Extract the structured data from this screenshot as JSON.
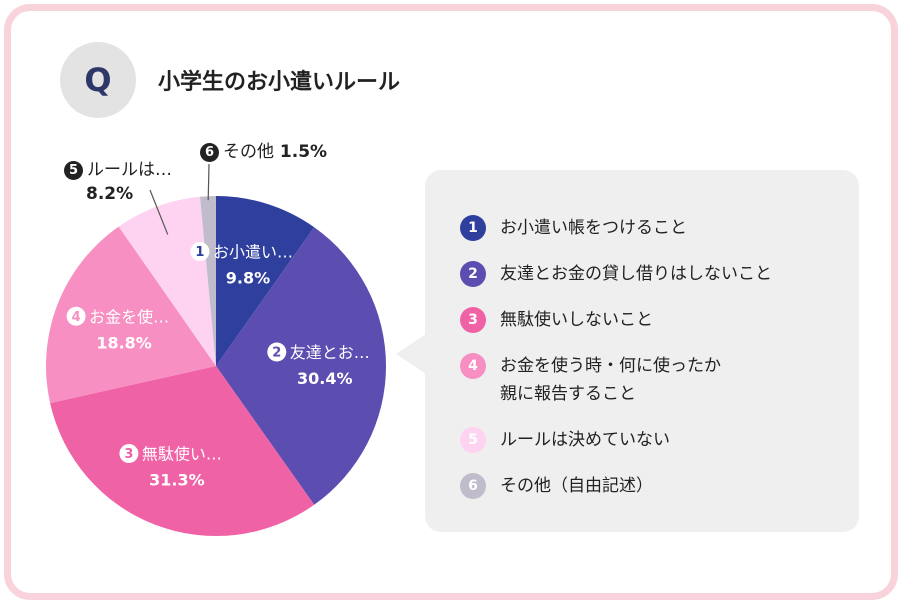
{
  "header": {
    "badge": "Q",
    "title": "小学生のお小遣いルール"
  },
  "colors": {
    "frame": "#f9d3db",
    "bubble": "#efefef",
    "slices": [
      "#2e3f9e",
      "#5c4db1",
      "#f062a6",
      "#f78fc2",
      "#fdd3f1",
      "#c0bccc"
    ]
  },
  "chart_data": {
    "type": "pie",
    "title": "小学生のお小遣いルール",
    "start_angle": "12 o'clock, clockwise",
    "slices": [
      {
        "num": "1",
        "label": "お小遣い…",
        "value": 9.8,
        "display": "9.8%"
      },
      {
        "num": "2",
        "label": "友達とお…",
        "value": 30.4,
        "display": "30.4%"
      },
      {
        "num": "3",
        "label": "無駄使い…",
        "value": 31.3,
        "display": "31.3%"
      },
      {
        "num": "4",
        "label": "お金を使…",
        "value": 18.8,
        "display": "18.8%"
      },
      {
        "num": "5",
        "label": "ルールは…",
        "value": 8.2,
        "display": "8.2%"
      },
      {
        "num": "6",
        "label": "その他",
        "value": 1.5,
        "display": "1.5%"
      }
    ]
  },
  "legend": {
    "items": [
      {
        "num": "1",
        "text": "お小遣い帳をつけること"
      },
      {
        "num": "2",
        "text": "友達とお金の貸し借りはしないこと"
      },
      {
        "num": "3",
        "text": "無駄使いしないこと"
      },
      {
        "num": "4",
        "text": "お金を使う時・何に使ったか\n親に報告すること"
      },
      {
        "num": "5",
        "text": "ルールは決めていない"
      },
      {
        "num": "6",
        "text": "その他（自由記述）"
      }
    ]
  }
}
